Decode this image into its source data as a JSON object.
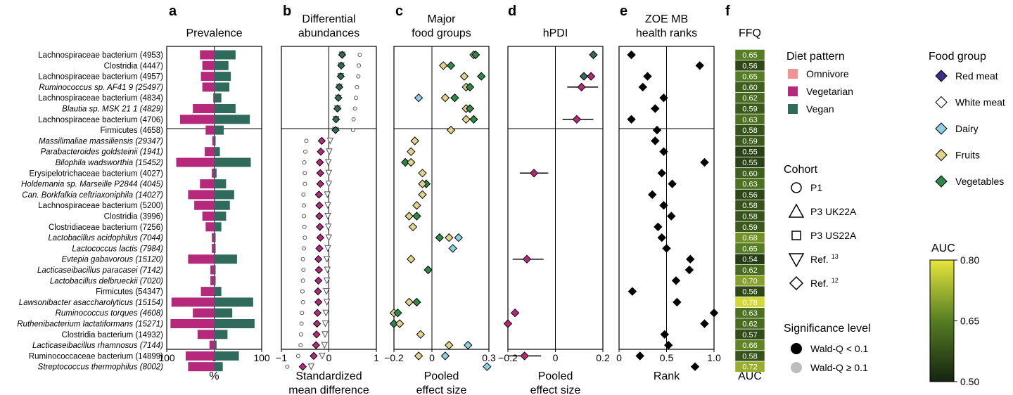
{
  "panel_letters": [
    "a",
    "b",
    "c",
    "d",
    "e",
    "f"
  ],
  "colors": {
    "omnivore": "#f29393",
    "vegetarian": "#b5287c",
    "vegan": "#2f6a5d",
    "red_meat": "#3c2d8c",
    "white_meat": "#ffffff",
    "dairy": "#8ecfe8",
    "fruits": "#e3d28a",
    "vegetables": "#2a8a4a",
    "sig": "#000000",
    "nonsig": "#bdbdbd"
  },
  "species": [
    {
      "label": "Lachnospiraceae bacterium (4953)",
      "italic": false
    },
    {
      "label": "Clostridia (4447)",
      "italic": false
    },
    {
      "label": "Lachnospiraceae bacterium (4957)",
      "italic": false
    },
    {
      "label": "Ruminococcus sp. AF41 9 (25497)",
      "italic": true
    },
    {
      "label": "Lachnospiraceae bacterium (4834)",
      "italic": false
    },
    {
      "label": "Blautia sp. MSK 21 1 (4829)",
      "italic": true
    },
    {
      "label": "Lachnospiraceae bacterium (4706)",
      "italic": false
    },
    {
      "label": "Firmicutes (4658)",
      "italic": false
    },
    {
      "label": "Massilimaliae massiliensis (29347)",
      "italic": true
    },
    {
      "label": "Parabacteroides goldsteinii (1941)",
      "italic": true
    },
    {
      "label": "Bilophila wadsworthia (15452)",
      "italic": true
    },
    {
      "label": "Erysipelotrichaceae bacterium (4027)",
      "italic": false
    },
    {
      "label": "Holdemania sp. Marseille P2844 (4045)",
      "italic": true
    },
    {
      "label": "Can. Borkfalkia ceftriaxoniphila (14027)",
      "italic": true
    },
    {
      "label": "Lachnospiraceae bacterium (5200)",
      "italic": false
    },
    {
      "label": "Clostridia (3996)",
      "italic": false
    },
    {
      "label": "Clostridiaceae bacterium (7256)",
      "italic": false
    },
    {
      "label": "Lactobacillus acidophilus (7044)",
      "italic": true
    },
    {
      "label": "Lactococcus lactis (7984)",
      "italic": true
    },
    {
      "label": "Evtepia gabavorous (15120)",
      "italic": true
    },
    {
      "label": "Lacticaseibacillus paracasei (7142)",
      "italic": true
    },
    {
      "label": "Lactobacillus delbrueckii (7020)",
      "italic": true
    },
    {
      "label": "Firmicutes (54347)",
      "italic": false
    },
    {
      "label": "Lawsonibacter asaccharolyticus (15154)",
      "italic": true
    },
    {
      "label": "Ruminococcus torques (4608)",
      "italic": true
    },
    {
      "label": "Ruthenibacterium lactatiformans (15271)",
      "italic": true
    },
    {
      "label": "Clostridia bacterium (14932)",
      "italic": false
    },
    {
      "label": "Lacticaseibacillus rhamnosus (7144)",
      "italic": true
    },
    {
      "label": "Ruminococcaceae bacterium (14899)",
      "italic": false
    },
    {
      "label": "Streptococcus thermophilus (8002)",
      "italic": true
    }
  ],
  "panels": {
    "a": {
      "letter": "a",
      "title": "Prevalence",
      "xlabel": "%",
      "ticks": [
        "100",
        "0",
        "100"
      ]
    },
    "b": {
      "letter": "b",
      "title": "Differential\nabundances",
      "xlabel": "Standardized\nmean difference",
      "ticks": [
        "−1",
        "0",
        "1"
      ],
      "xlim": [
        -1,
        1
      ]
    },
    "c": {
      "letter": "c",
      "title": "Major\nfood groups",
      "xlabel": "Pooled\neffect size",
      "ticks": [
        "−0.2",
        "0",
        "0.3"
      ],
      "xlim": [
        -0.2,
        0.3
      ]
    },
    "d": {
      "letter": "d",
      "title": "hPDI",
      "xlabel": "Pooled\neffect size",
      "ticks": [
        "−0.2",
        "0",
        "0.2"
      ],
      "xlim": [
        -0.2,
        0.2
      ]
    },
    "e": {
      "letter": "e",
      "title": "ZOE MB\nhealth ranks",
      "xlabel": "Rank",
      "ticks": [
        "0",
        "0.5",
        "1.0"
      ],
      "xlim": [
        0,
        1
      ]
    },
    "f": {
      "letter": "f",
      "title": "FFQ",
      "xlabel": "AUC"
    }
  },
  "chart_data": {
    "type": "forest-panels",
    "prevalence": {
      "vegetarian": [
        30,
        25,
        28,
        25,
        2,
        45,
        72,
        18,
        4,
        20,
        80,
        5,
        30,
        55,
        42,
        25,
        18,
        5,
        5,
        55,
        8,
        8,
        28,
        90,
        45,
        92,
        35,
        10,
        60,
        55
      ],
      "vegan": [
        45,
        30,
        35,
        32,
        15,
        45,
        75,
        20,
        3,
        12,
        77,
        5,
        25,
        42,
        33,
        25,
        15,
        3,
        3,
        48,
        3,
        3,
        15,
        82,
        38,
        85,
        28,
        5,
        52,
        18
      ]
    },
    "differential_abundances": {
      "vegan": [
        0.28,
        0.26,
        0.25,
        0.22,
        0.2,
        0.18,
        0.15,
        0.14,
        null,
        null,
        null,
        null,
        null,
        null,
        null,
        null,
        null,
        null,
        null,
        null,
        null,
        null,
        null,
        null,
        null,
        null,
        null,
        null,
        null,
        null
      ],
      "vegetarian": [
        null,
        null,
        null,
        null,
        null,
        null,
        null,
        null,
        -0.15,
        -0.17,
        -0.19,
        -0.18,
        -0.18,
        -0.21,
        -0.2,
        -0.2,
        -0.19,
        -0.18,
        -0.2,
        -0.22,
        -0.21,
        -0.22,
        -0.23,
        -0.22,
        -0.24,
        -0.25,
        -0.26,
        -0.27,
        -0.32,
        -0.55
      ]
    },
    "food_groups": [
      {
        "row": 0,
        "group": "fruits",
        "value": 0.22
      },
      {
        "row": 0,
        "group": "vegetables",
        "value": 0.23
      },
      {
        "row": 1,
        "group": "fruits",
        "value": 0.06
      },
      {
        "row": 1,
        "group": "vegetables",
        "value": 0.1
      },
      {
        "row": 2,
        "group": "fruits",
        "value": 0.17
      },
      {
        "row": 2,
        "group": "vegetables",
        "value": 0.26
      },
      {
        "row": 3,
        "group": "fruits",
        "value": 0.18
      },
      {
        "row": 3,
        "group": "vegetables",
        "value": 0.2
      },
      {
        "row": 4,
        "group": "dairy",
        "value": -0.07
      },
      {
        "row": 4,
        "group": "fruits",
        "value": 0.07
      },
      {
        "row": 4,
        "group": "vegetables",
        "value": 0.12
      },
      {
        "row": 5,
        "group": "fruits",
        "value": 0.18
      },
      {
        "row": 5,
        "group": "vegetables",
        "value": 0.2
      },
      {
        "row": 6,
        "group": "fruits",
        "value": 0.18
      },
      {
        "row": 6,
        "group": "vegetables",
        "value": 0.22
      },
      {
        "row": 7,
        "group": "fruits",
        "value": 0.1
      },
      {
        "row": 8,
        "group": "fruits",
        "value": -0.09
      },
      {
        "row": 9,
        "group": "fruits",
        "value": -0.11
      },
      {
        "row": 10,
        "group": "vegetables",
        "value": -0.14
      },
      {
        "row": 10,
        "group": "fruits",
        "value": -0.11
      },
      {
        "row": 11,
        "group": "fruits",
        "value": -0.05
      },
      {
        "row": 12,
        "group": "vegetables",
        "value": -0.03
      },
      {
        "row": 12,
        "group": "fruits",
        "value": -0.05
      },
      {
        "row": 13,
        "group": "fruits",
        "value": -0.05
      },
      {
        "row": 14,
        "group": "fruits",
        "value": -0.08
      },
      {
        "row": 15,
        "group": "fruits",
        "value": -0.12
      },
      {
        "row": 15,
        "group": "vegetables",
        "value": -0.08
      },
      {
        "row": 16,
        "group": "fruits",
        "value": -0.1
      },
      {
        "row": 17,
        "group": "vegetables",
        "value": 0.04
      },
      {
        "row": 17,
        "group": "fruits",
        "value": 0.09
      },
      {
        "row": 17,
        "group": "dairy",
        "value": 0.14
      },
      {
        "row": 18,
        "group": "dairy",
        "value": 0.11
      },
      {
        "row": 19,
        "group": "fruits",
        "value": -0.11
      },
      {
        "row": 20,
        "group": "vegetables",
        "value": -0.02
      },
      {
        "row": 23,
        "group": "fruits",
        "value": -0.12
      },
      {
        "row": 23,
        "group": "vegetables",
        "value": -0.08
      },
      {
        "row": 24,
        "group": "fruits",
        "value": -0.2
      },
      {
        "row": 24,
        "group": "vegetables",
        "value": -0.18
      },
      {
        "row": 25,
        "group": "vegetables",
        "value": -0.2
      },
      {
        "row": 25,
        "group": "fruits",
        "value": -0.17
      },
      {
        "row": 26,
        "group": "fruits",
        "value": -0.06
      },
      {
        "row": 27,
        "group": "fruits",
        "value": 0.09
      },
      {
        "row": 27,
        "group": "dairy",
        "value": 0.19
      },
      {
        "row": 28,
        "group": "fruits",
        "value": -0.07
      },
      {
        "row": 28,
        "group": "dairy",
        "value": 0.07
      },
      {
        "row": 29,
        "group": "dairy",
        "value": 0.29
      }
    ],
    "hpdi": [
      {
        "row": 0,
        "diet": "vegan",
        "value": 0.16
      },
      {
        "row": 2,
        "diet": "vegan",
        "value": 0.12
      },
      {
        "row": 2,
        "diet": "vegetarian",
        "value": 0.15
      },
      {
        "row": 3,
        "diet": "vegetarian",
        "value": 0.11,
        "ci": [
          0.05,
          0.18
        ]
      },
      {
        "row": 6,
        "diet": "vegetarian",
        "value": 0.09,
        "ci": [
          0.03,
          0.16
        ]
      },
      {
        "row": 11,
        "diet": "vegetarian",
        "value": -0.09,
        "ci": [
          -0.15,
          -0.03
        ]
      },
      {
        "row": 19,
        "diet": "vegetarian",
        "value": -0.12,
        "ci": [
          -0.18,
          -0.05
        ]
      },
      {
        "row": 24,
        "diet": "vegetarian",
        "value": -0.17
      },
      {
        "row": 25,
        "diet": "vegetarian",
        "value": -0.2
      },
      {
        "row": 28,
        "diet": "vegetarian",
        "value": -0.13,
        "ci": [
          -0.2,
          -0.06
        ]
      }
    ],
    "zoe_ranks": [
      0.13,
      0.85,
      0.3,
      0.25,
      0.47,
      0.38,
      0.13,
      0.4,
      0.38,
      0.47,
      0.9,
      0.45,
      0.56,
      0.35,
      0.47,
      0.55,
      0.41,
      0.45,
      0.5,
      0.75,
      0.74,
      0.6,
      0.14,
      0.61,
      1.0,
      0.9,
      0.48,
      0.52,
      0.22,
      0.8
    ],
    "ffq_auc": [
      "0.65",
      "0.56",
      "0.65",
      "0.60",
      "0.62",
      "0.59",
      "0.63",
      "0.58",
      "0.59",
      "0.55",
      "0.55",
      "0.60",
      "0.63",
      "0.56",
      "0.58",
      "0.58",
      "0.59",
      "0.68",
      "0.65",
      "0.54",
      "0.62",
      "0.70",
      "0.56",
      "0.78",
      "0.63",
      "0.62",
      "0.57",
      "0.66",
      "0.58",
      "0.72"
    ],
    "auc_colorbar": {
      "min": 0.5,
      "max": 0.8,
      "ticks": [
        "0.80",
        "0.65",
        "0.50"
      ],
      "title": "AUC"
    }
  },
  "legends": {
    "diet": {
      "title": "Diet pattern",
      "items": [
        {
          "label": "Omnivore",
          "color_key": "omnivore"
        },
        {
          "label": "Vegetarian",
          "color_key": "vegetarian"
        },
        {
          "label": "Vegan",
          "color_key": "vegan"
        }
      ]
    },
    "cohort": {
      "title": "Cohort",
      "items": [
        {
          "label": "P1",
          "shape": "circle"
        },
        {
          "label": "P3 UK22A",
          "shape": "triangle"
        },
        {
          "label": "P3 US22A",
          "shape": "square"
        },
        {
          "label": "Ref.",
          "sup": "13",
          "shape": "triangle-down"
        },
        {
          "label": "Ref.",
          "sup": "12",
          "shape": "diamond"
        }
      ]
    },
    "significance": {
      "title": "Significance level",
      "items": [
        {
          "label": "Wald-Q < 0.1",
          "color_key": "sig"
        },
        {
          "label": "Wald-Q ≥ 0.1",
          "color_key": "nonsig"
        }
      ]
    },
    "food_group": {
      "title": "Food group",
      "items": [
        {
          "label": "Red meat",
          "color_key": "red_meat"
        },
        {
          "label": "White meat",
          "color_key": "white_meat"
        },
        {
          "label": "Dairy",
          "color_key": "dairy"
        },
        {
          "label": "Fruits",
          "color_key": "fruits"
        },
        {
          "label": "Vegetables",
          "color_key": "vegetables"
        }
      ]
    }
  }
}
